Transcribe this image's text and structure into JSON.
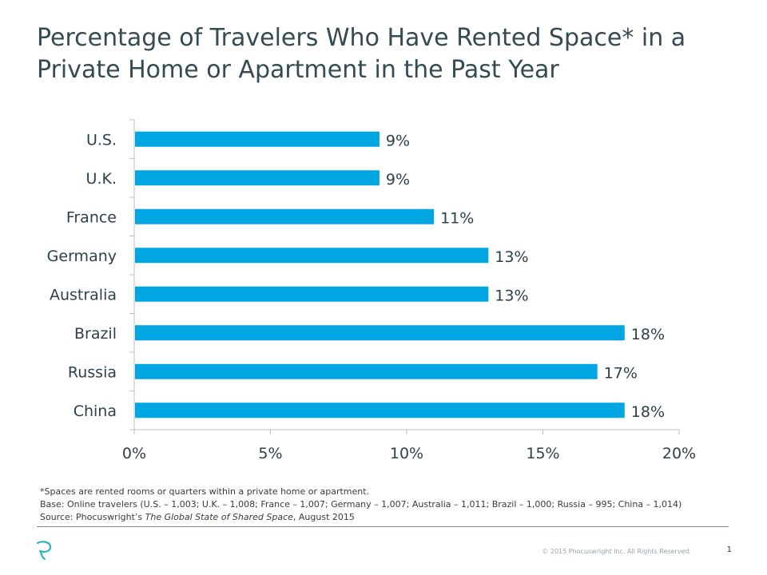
{
  "slide": {
    "title_line1": "Percentage of Travelers Who Have Rented Space* in a",
    "title_line2": "Private Home or Apartment in the Past Year",
    "page_number": "1",
    "copyright": "© 2015 Phocuswright Inc. All Rights Reserved."
  },
  "notes": {
    "footnote": "*Spaces are rented rooms or quarters within a private home or apartment.",
    "base": "Base: Online travelers (U.S. – 1,003; U.K. – 1,008; France – 1,007; Germany – 1,007; Australia – 1,011; Brazil – 1,000; Russia – 995; China – 1,014)",
    "source_prefix": "Source: Phocuswright’s ",
    "source_title": "The Global State of Shared Space",
    "source_suffix": ", August 2015"
  },
  "colors": {
    "bar": "#00a6e2",
    "axis": "#bfbfbf",
    "text": "#2e3f48"
  },
  "icons": {
    "logo": "phocuswright-p-logo-icon"
  },
  "chart_data": {
    "type": "bar",
    "orientation": "horizontal",
    "categories": [
      "U.S.",
      "U.K.",
      "France",
      "Germany",
      "Australia",
      "Brazil",
      "Russia",
      "China"
    ],
    "values": [
      9,
      9,
      11,
      13,
      13,
      18,
      17,
      18
    ],
    "data_labels": [
      "9%",
      "9%",
      "11%",
      "13%",
      "13%",
      "18%",
      "17%",
      "18%"
    ],
    "xlim": [
      0,
      20
    ],
    "xticks": [
      0,
      5,
      10,
      15,
      20
    ],
    "xtick_labels": [
      "0%",
      "5%",
      "10%",
      "15%",
      "20%"
    ],
    "grid": false,
    "legend": "none"
  }
}
